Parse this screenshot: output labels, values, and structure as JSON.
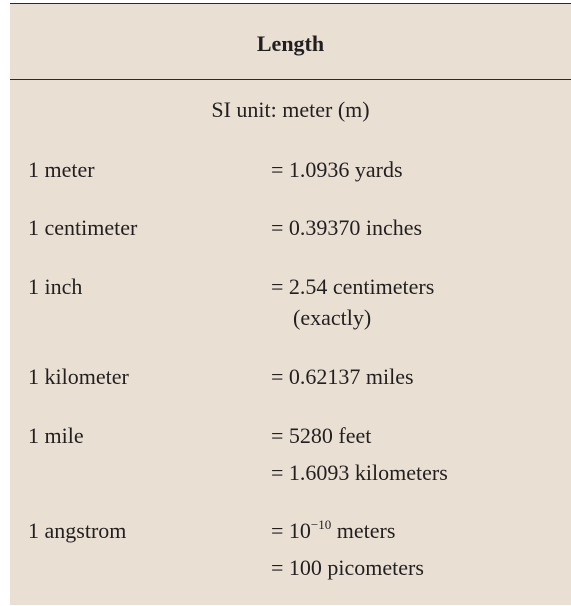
{
  "header": {
    "title": "Length"
  },
  "subtitle": "SI unit: meter (m)",
  "rows": [
    {
      "label": "1 meter",
      "values": [
        "= 1.0936 yards"
      ]
    },
    {
      "label": "1 centimeter",
      "values": [
        "= 0.39370 inches"
      ]
    },
    {
      "label": "1 inch",
      "values": [
        "= 2.54 centimeters",
        "(exactly)"
      ]
    },
    {
      "label": "1 kilometer",
      "values": [
        "= 0.62137 miles"
      ]
    },
    {
      "label": "1 mile",
      "values": [
        "= 5280 feet",
        "= 1.6093 kilometers"
      ]
    },
    {
      "label": "1 angstrom",
      "values": [
        "= 100 picometers"
      ],
      "exp_value": {
        "prefix": "= 10",
        "exponent": "−10",
        "suffix": " meters"
      }
    }
  ]
}
